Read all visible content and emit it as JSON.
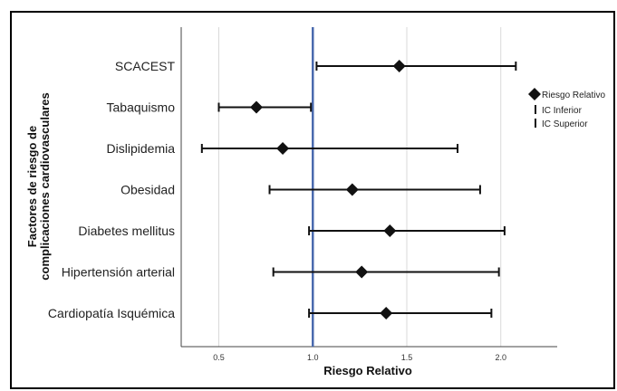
{
  "chart_data": {
    "type": "scatter",
    "title": "",
    "xlabel": "Riesgo Relativo",
    "ylabel_lines": [
      "Factores de riesgo de",
      "complicaciones cardiovasculares"
    ],
    "xlim": [
      0.3,
      2.3
    ],
    "xticks": [
      0.5,
      1.0,
      1.5,
      2.0
    ],
    "xtick_labels": [
      "0.5",
      "1.0",
      "1.5",
      "2.0"
    ],
    "reference_line": {
      "x": 1.0,
      "color": "#4a6aae"
    },
    "grid": "vertical",
    "legend_position": "right",
    "legend": [
      {
        "label": "Riesgo Relativo",
        "marker": "diamond"
      },
      {
        "label": "IC Inferior",
        "marker": "bar"
      },
      {
        "label": "IC Superior",
        "marker": "bar"
      }
    ],
    "categories": [
      "SCACEST",
      "Tabaquismo",
      "Dislipidemia",
      "Obesidad",
      "Diabetes mellitus",
      "Hipertensión arterial",
      "Cardiopatía Isquémica"
    ],
    "rr": [
      1.46,
      0.7,
      0.84,
      1.21,
      1.41,
      1.26,
      1.39
    ],
    "ci_lower": [
      1.02,
      0.5,
      0.41,
      0.77,
      0.98,
      0.79,
      0.98
    ],
    "ci_upper": [
      2.08,
      0.99,
      1.77,
      1.89,
      2.02,
      1.99,
      1.95
    ]
  }
}
